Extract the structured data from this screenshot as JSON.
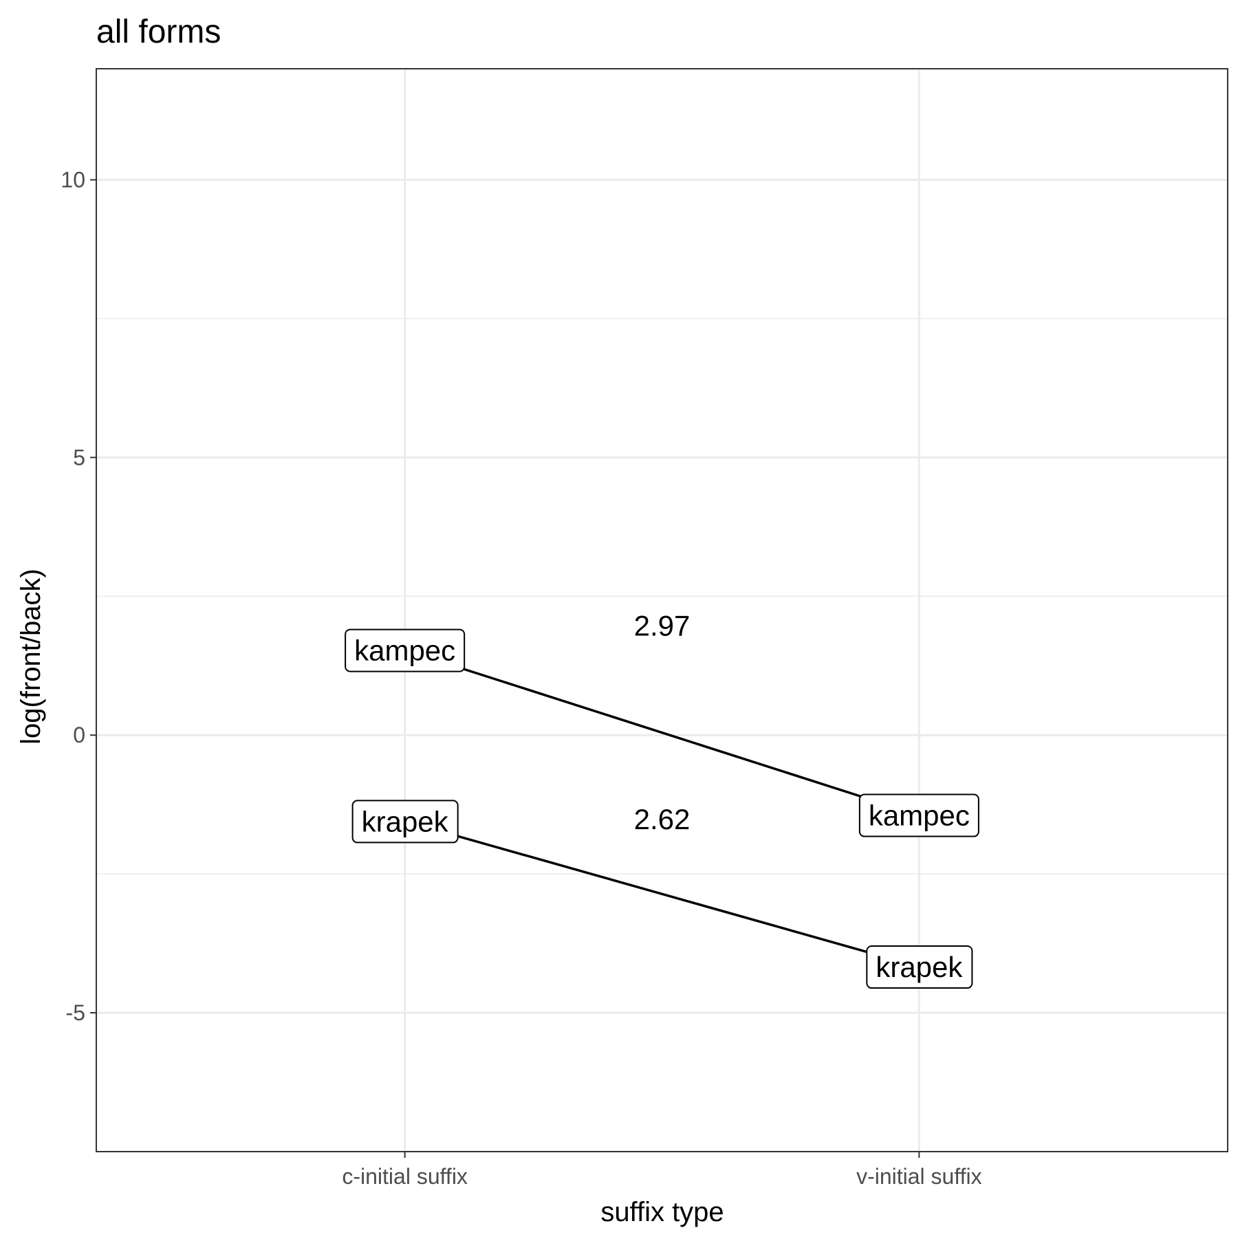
{
  "chart_data": {
    "type": "line",
    "title": "all forms",
    "xlabel": "suffix type",
    "ylabel": "log(front/back)",
    "categories": [
      "c-initial suffix",
      "v-initial suffix"
    ],
    "ylim": [
      -7.5,
      12
    ],
    "yticks": [
      -5,
      0,
      5,
      10
    ],
    "ytick_labels": [
      "-5",
      "0",
      "5",
      "10"
    ],
    "grid": true,
    "series": [
      {
        "name": "kampec",
        "values": [
          1.53,
          -1.44
        ]
      },
      {
        "name": "krapek",
        "values": [
          -1.55,
          -4.17
        ]
      }
    ],
    "annotations": [
      {
        "text": "2.97",
        "x": 1.5,
        "y": 1.98
      },
      {
        "text": "2.62",
        "x": 1.5,
        "y": -1.51
      }
    ]
  }
}
